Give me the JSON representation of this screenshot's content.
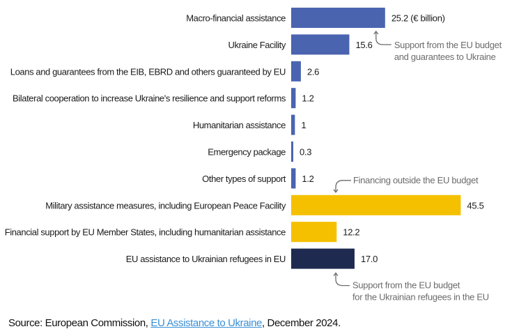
{
  "chart_data": {
    "type": "bar",
    "orientation": "horizontal",
    "title": "",
    "unit_label": "(€ billion)",
    "xlabel": "",
    "ylabel": "",
    "grid": false,
    "xlim": [
      0,
      50
    ],
    "categories": [
      "Macro-financial assistance",
      "Ukraine Facility",
      "Loans and guarantees from the EIB, EBRD and others guaranteed by EU",
      "Bilateral cooperation to increase Ukraine's resilience and support reforms",
      "Humanitarian assistance",
      "Emergency package",
      "Other types of support",
      "Military assistance measures, including European Peace Facility",
      "Financial support by EU Member States, including humanitarian assistance",
      "EU assistance to Ukrainian refugees in EU"
    ],
    "values": [
      25.2,
      15.6,
      2.6,
      1.2,
      1,
      0.3,
      1.2,
      45.5,
      12.2,
      17.0
    ],
    "value_labels": [
      "25.2",
      "15.6",
      "2.6",
      "1.2",
      "1",
      "0.3",
      "1.2",
      "45.5",
      "12.2",
      "17.0"
    ],
    "groups": [
      "eu_budget",
      "eu_budget",
      "eu_budget",
      "eu_budget",
      "eu_budget",
      "eu_budget",
      "eu_budget",
      "outside",
      "outside",
      "refugees"
    ],
    "series_colors": {
      "eu_budget": "#4a64b0",
      "outside": "#f5c000",
      "refugees": "#1f2a50"
    },
    "annotations": [
      {
        "group": "eu_budget",
        "lines": [
          "Support from the EU budget",
          "and guarantees to Ukraine"
        ]
      },
      {
        "group": "outside",
        "lines": [
          "Financing outside the EU budget"
        ]
      },
      {
        "group": "refugees",
        "lines": [
          "Support from the EU budget",
          "for the Ukrainian refugees in the EU"
        ]
      }
    ]
  },
  "source": {
    "prefix": "Source: European Commission, ",
    "link_text": "EU Assistance to Ukraine",
    "suffix": ", December 2024."
  }
}
